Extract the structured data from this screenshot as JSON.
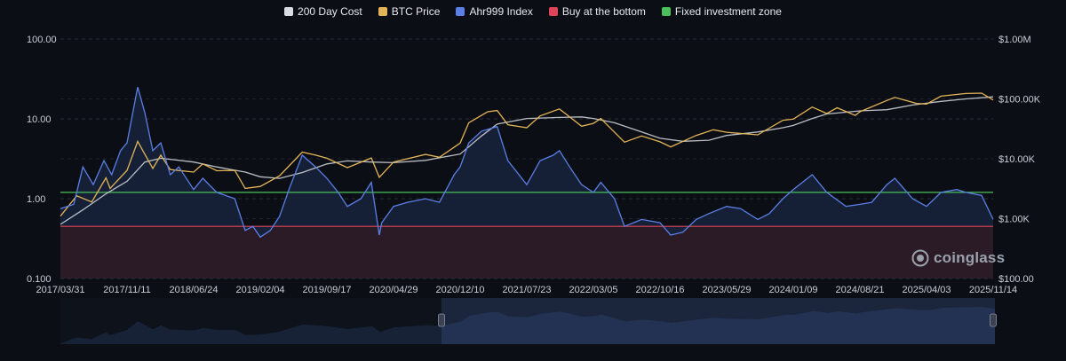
{
  "legend": {
    "items": [
      {
        "label": "200 Day Cost",
        "color": "#d9dde3"
      },
      {
        "label": "BTC Price",
        "color": "#e3b457"
      },
      {
        "label": "Ahr999 Index",
        "color": "#5b7fe6"
      },
      {
        "label": "Buy at the bottom",
        "color": "#e0445a"
      },
      {
        "label": "Fixed investment zone",
        "color": "#4cc05a"
      }
    ]
  },
  "brand": {
    "name": "coinglass"
  },
  "colors": {
    "background": "#0b0e14",
    "grid": "#2a2f3a",
    "bottom_zone_fill": "#2a1b26",
    "ahr_fill": "#16223a"
  },
  "chart_data": {
    "type": "line",
    "x_tick_labels": [
      "2017/03/31",
      "2017/11/11",
      "2018/06/24",
      "2019/02/04",
      "2019/09/17",
      "2020/04/29",
      "2020/12/10",
      "2021/07/23",
      "2022/03/05",
      "2022/10/16",
      "2023/05/29",
      "2024/01/09",
      "2024/08/21",
      "2025/04/03",
      "2025/11/14"
    ],
    "y_left": {
      "scale": "log",
      "range": [
        0.1,
        100
      ],
      "tick_labels": [
        "100.00",
        "10.00",
        "1.00",
        "0.100"
      ]
    },
    "y_right": {
      "scale": "log",
      "range": [
        100,
        1000000
      ],
      "tick_labels": [
        "$1.00M",
        "$100.00K",
        "$10.00K",
        "$1.00K",
        "$100.00"
      ]
    },
    "grid": "horizontal dashed",
    "legend_position": "top-center",
    "thresholds": [
      {
        "name": "Buy at the bottom",
        "value": 0.45
      },
      {
        "name": "Fixed investment zone",
        "value": 1.2
      }
    ],
    "series": [
      {
        "name": "Ahr999 Index",
        "axis": "left",
        "points": [
          [
            "2017/03/31",
            0.75
          ],
          [
            "2017/05/15",
            0.85
          ],
          [
            "2017/06/15",
            2.5
          ],
          [
            "2017/07/20",
            1.5
          ],
          [
            "2017/08/25",
            3.0
          ],
          [
            "2017/09/20",
            2.0
          ],
          [
            "2017/10/20",
            4.0
          ],
          [
            "2017/11/11",
            5.0
          ],
          [
            "2017/12/17",
            25
          ],
          [
            "2018/01/10",
            12
          ],
          [
            "2018/02/06",
            4.0
          ],
          [
            "2018/03/05",
            5.0
          ],
          [
            "2018/04/06",
            2.0
          ],
          [
            "2018/05/05",
            2.5
          ],
          [
            "2018/06/24",
            1.3
          ],
          [
            "2018/07/25",
            1.8
          ],
          [
            "2018/09/10",
            1.2
          ],
          [
            "2018/11/10",
            1.0
          ],
          [
            "2018/12/15",
            0.4
          ],
          [
            "2019/01/10",
            0.45
          ],
          [
            "2019/02/04",
            0.33
          ],
          [
            "2019/03/10",
            0.4
          ],
          [
            "2019/04/10",
            0.6
          ],
          [
            "2019/05/15",
            1.4
          ],
          [
            "2019/06/26",
            3.5
          ],
          [
            "2019/08/10",
            2.5
          ],
          [
            "2019/09/17",
            1.8
          ],
          [
            "2019/10/25",
            1.2
          ],
          [
            "2019/11/25",
            0.8
          ],
          [
            "2020/01/10",
            1.0
          ],
          [
            "2020/02/14",
            1.6
          ],
          [
            "2020/03/12",
            0.35
          ],
          [
            "2020/03/20",
            0.5
          ],
          [
            "2020/04/29",
            0.8
          ],
          [
            "2020/06/15",
            0.9
          ],
          [
            "2020/08/15",
            1.0
          ],
          [
            "2020/10/01",
            0.9
          ],
          [
            "2020/11/20",
            2.0
          ],
          [
            "2020/12/10",
            2.5
          ],
          [
            "2021/01/08",
            5.0
          ],
          [
            "2021/02/20",
            7.0
          ],
          [
            "2021/04/14",
            8.0
          ],
          [
            "2021/05/20",
            3.0
          ],
          [
            "2021/07/23",
            1.5
          ],
          [
            "2021/09/06",
            3.0
          ],
          [
            "2021/10/20",
            3.5
          ],
          [
            "2021/11/10",
            4.0
          ],
          [
            "2021/12/15",
            2.5
          ],
          [
            "2022/01/24",
            1.5
          ],
          [
            "2022/03/05",
            1.2
          ],
          [
            "2022/03/30",
            1.6
          ],
          [
            "2022/05/15",
            1.0
          ],
          [
            "2022/06/18",
            0.45
          ],
          [
            "2022/08/15",
            0.55
          ],
          [
            "2022/10/16",
            0.5
          ],
          [
            "2022/11/21",
            0.35
          ],
          [
            "2023/01/01",
            0.38
          ],
          [
            "2023/02/15",
            0.55
          ],
          [
            "2023/03/30",
            0.65
          ],
          [
            "2023/05/29",
            0.8
          ],
          [
            "2023/07/15",
            0.75
          ],
          [
            "2023/09/11",
            0.55
          ],
          [
            "2023/10/20",
            0.65
          ],
          [
            "2023/12/05",
            1.0
          ],
          [
            "2024/01/09",
            1.3
          ],
          [
            "2024/03/13",
            2.0
          ],
          [
            "2024/05/01",
            1.2
          ],
          [
            "2024/07/05",
            0.8
          ],
          [
            "2024/08/21",
            0.85
          ],
          [
            "2024/09/30",
            0.9
          ],
          [
            "2024/11/20",
            1.5
          ],
          [
            "2024/12/17",
            1.8
          ],
          [
            "2025/02/15",
            1.0
          ],
          [
            "2025/04/03",
            0.8
          ],
          [
            "2025/05/22",
            1.2
          ],
          [
            "2025/07/14",
            1.3
          ],
          [
            "2025/08/14",
            1.2
          ],
          [
            "2025/10/06",
            1.1
          ],
          [
            "2025/11/14",
            0.55
          ]
        ]
      },
      {
        "name": "BTC Price",
        "axis": "right",
        "points": [
          [
            "2017/03/31",
            1100
          ],
          [
            "2017/05/25",
            2400
          ],
          [
            "2017/07/15",
            1900
          ],
          [
            "2017/09/01",
            4800
          ],
          [
            "2017/09/15",
            3200
          ],
          [
            "2017/11/11",
            6400
          ],
          [
            "2017/12/17",
            19500
          ],
          [
            "2018/02/06",
            6900
          ],
          [
            "2018/03/05",
            11500
          ],
          [
            "2018/04/06",
            6600
          ],
          [
            "2018/06/24",
            6000
          ],
          [
            "2018/07/25",
            8200
          ],
          [
            "2018/09/10",
            6300
          ],
          [
            "2018/11/10",
            6400
          ],
          [
            "2018/12/15",
            3200
          ],
          [
            "2019/02/04",
            3450
          ],
          [
            "2019/04/10",
            5200
          ],
          [
            "2019/06/26",
            12900
          ],
          [
            "2019/08/10",
            11500
          ],
          [
            "2019/09/17",
            10200
          ],
          [
            "2019/11/25",
            7100
          ],
          [
            "2020/02/14",
            10300
          ],
          [
            "2020/03/12",
            4900
          ],
          [
            "2020/04/29",
            8800
          ],
          [
            "2020/08/15",
            11800
          ],
          [
            "2020/10/01",
            10600
          ],
          [
            "2020/12/10",
            18300
          ],
          [
            "2021/01/08",
            40000
          ],
          [
            "2021/03/13",
            61000
          ],
          [
            "2021/04/14",
            64000
          ],
          [
            "2021/05/20",
            37000
          ],
          [
            "2021/07/23",
            33000
          ],
          [
            "2021/09/06",
            52000
          ],
          [
            "2021/11/10",
            68000
          ],
          [
            "2022/01/24",
            35000
          ],
          [
            "2022/03/05",
            39000
          ],
          [
            "2022/03/30",
            47000
          ],
          [
            "2022/06/18",
            18900
          ],
          [
            "2022/08/15",
            24000
          ],
          [
            "2022/10/16",
            19200
          ],
          [
            "2022/11/21",
            15800
          ],
          [
            "2023/02/15",
            24500
          ],
          [
            "2023/04/14",
            30500
          ],
          [
            "2023/05/29",
            27700
          ],
          [
            "2023/09/11",
            25100
          ],
          [
            "2023/12/05",
            44000
          ],
          [
            "2024/01/09",
            46000
          ],
          [
            "2024/03/13",
            73000
          ],
          [
            "2024/05/01",
            57000
          ],
          [
            "2024/06/05",
            71000
          ],
          [
            "2024/08/05",
            53000
          ],
          [
            "2024/08/21",
            61000
          ],
          [
            "2024/11/20",
            94000
          ],
          [
            "2024/12/17",
            106000
          ],
          [
            "2025/02/28",
            84000
          ],
          [
            "2025/04/03",
            82000
          ],
          [
            "2025/05/22",
            111000
          ],
          [
            "2025/08/14",
            123000
          ],
          [
            "2025/10/06",
            125000
          ],
          [
            "2025/11/14",
            96000
          ]
        ]
      },
      {
        "name": "200 Day Cost",
        "axis": "right",
        "points": [
          [
            "2017/03/31",
            800
          ],
          [
            "2017/06/15",
            1400
          ],
          [
            "2017/09/01",
            2600
          ],
          [
            "2017/11/11",
            4200
          ],
          [
            "2018/01/10",
            8800
          ],
          [
            "2018/03/05",
            10200
          ],
          [
            "2018/06/24",
            8800
          ],
          [
            "2018/09/10",
            7300
          ],
          [
            "2018/12/15",
            6000
          ],
          [
            "2019/02/04",
            5000
          ],
          [
            "2019/04/10",
            4700
          ],
          [
            "2019/06/26",
            5900
          ],
          [
            "2019/09/17",
            8200
          ],
          [
            "2019/11/25",
            9200
          ],
          [
            "2020/02/14",
            8800
          ],
          [
            "2020/04/29",
            8600
          ],
          [
            "2020/08/15",
            9400
          ],
          [
            "2020/10/01",
            10400
          ],
          [
            "2020/12/10",
            12000
          ],
          [
            "2021/02/20",
            24000
          ],
          [
            "2021/04/14",
            38000
          ],
          [
            "2021/07/23",
            47000
          ],
          [
            "2021/11/10",
            49000
          ],
          [
            "2022/01/24",
            50000
          ],
          [
            "2022/03/05",
            47000
          ],
          [
            "2022/05/15",
            40000
          ],
          [
            "2022/08/15",
            28000
          ],
          [
            "2022/10/16",
            22000
          ],
          [
            "2023/01/01",
            19600
          ],
          [
            "2023/03/30",
            20400
          ],
          [
            "2023/05/29",
            24500
          ],
          [
            "2023/09/11",
            28000
          ],
          [
            "2023/12/05",
            33000
          ],
          [
            "2024/01/09",
            36000
          ],
          [
            "2024/03/13",
            47000
          ],
          [
            "2024/05/01",
            56000
          ],
          [
            "2024/08/21",
            63000
          ],
          [
            "2024/11/20",
            66000
          ],
          [
            "2025/02/15",
            79000
          ],
          [
            "2025/05/22",
            91000
          ],
          [
            "2025/08/14",
            100000
          ],
          [
            "2025/11/14",
            108000
          ]
        ]
      }
    ]
  }
}
